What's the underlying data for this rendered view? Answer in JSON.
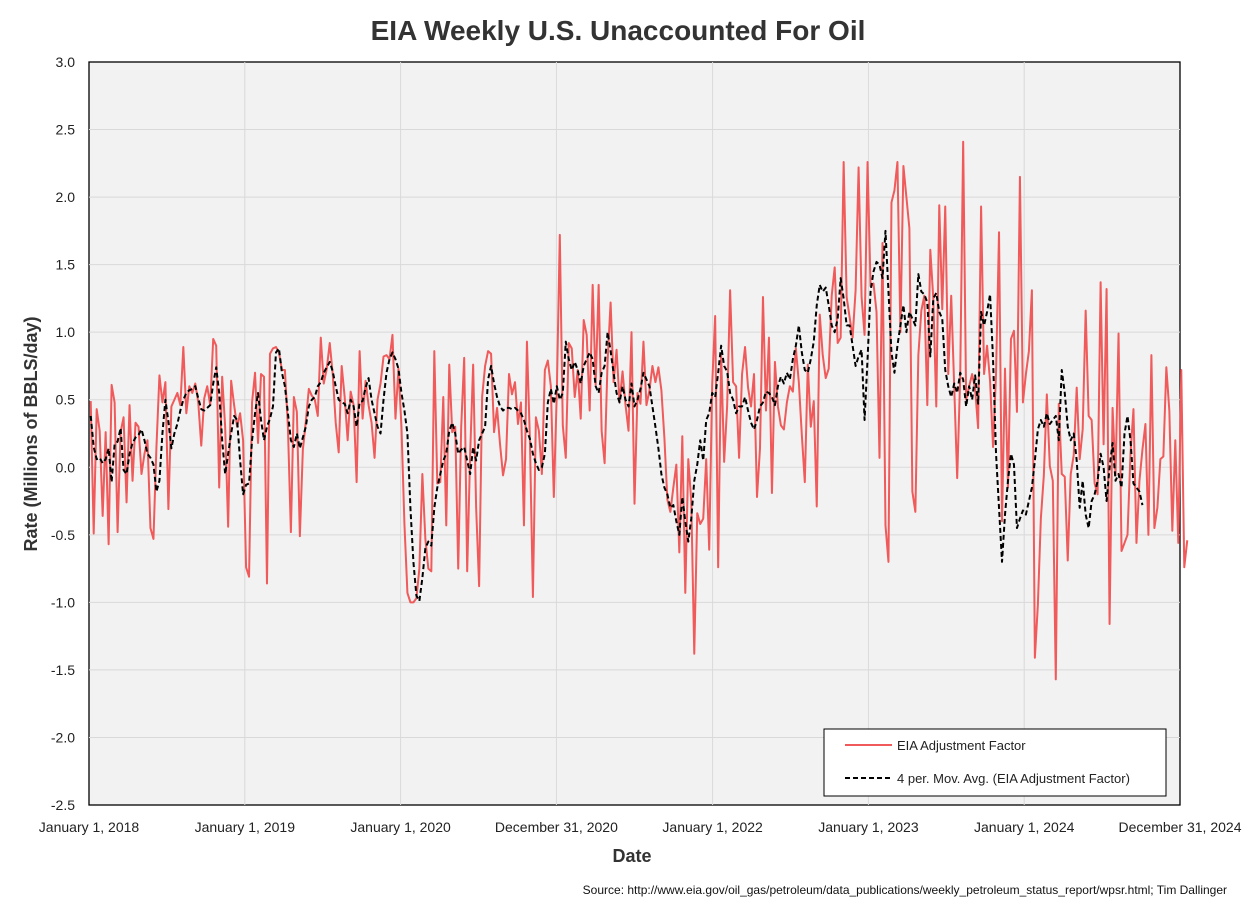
{
  "chart_data": {
    "type": "line",
    "title": "EIA Weekly U.S. Unaccounted For Oil",
    "xlabel": "Date",
    "ylabel": "Rate (Millions of BBLS/day)",
    "source": "Source: http://www.eia.gov/oil_gas/petroleum/data_publications/weekly_petroleum_status_report/wpsr.html; Tim Dallinger",
    "xlim": [
      "2018-01-01",
      "2024-12-31"
    ],
    "ylim": [
      -2.5,
      3.0
    ],
    "yticks": [
      3.0,
      2.5,
      2.0,
      1.5,
      1.0,
      0.5,
      0.0,
      -0.5,
      -1.0,
      -1.5,
      -2.0,
      -2.5
    ],
    "ytick_labels": [
      "3.0",
      "2.5",
      "2.0",
      "1.5",
      "1.0",
      "0.5",
      "0.0",
      "-0.5",
      "-1.0",
      "-1.5",
      "-2.0",
      "-2.5"
    ],
    "xticks": [
      "2018-01-01",
      "2019-01-01",
      "2020-01-01",
      "2020-12-31",
      "2022-01-01",
      "2023-01-01",
      "2024-01-01",
      "2024-12-31"
    ],
    "xtick_labels": [
      "January 1, 2018",
      "January 1, 2019",
      "January 1, 2020",
      "December 31, 2020",
      "January 1, 2022",
      "January 1, 2023",
      "January 1, 2024",
      "December 31, 2024"
    ],
    "grid": true,
    "legend_position": "bottom-right",
    "colors": {
      "series": "#f05a5a",
      "moving_avg": "#000000",
      "plot_bg": "#f2f2f2",
      "grid": "#d9d9d9"
    },
    "series": [
      {
        "name": "EIA Adjustment Factor",
        "x_start": "2018-01-05",
        "interval_days": 7,
        "values": [
          0.49,
          -0.49,
          0.43,
          0.27,
          -0.36,
          0.26,
          -0.57,
          0.61,
          0.48,
          -0.48,
          0.26,
          0.37,
          -0.26,
          0.46,
          -0.1,
          0.33,
          0.3,
          -0.05,
          0.1,
          0.2,
          -0.45,
          -0.53,
          0.15,
          0.68,
          0.48,
          0.63,
          -0.31,
          0.45,
          0.5,
          0.55,
          0.46,
          0.89,
          0.4,
          0.6,
          0.55,
          0.62,
          0.48,
          0.16,
          0.51,
          0.6,
          0.46,
          0.95,
          0.9,
          -0.15,
          0.67,
          0.3,
          -0.44,
          0.64,
          0.46,
          0.3,
          0.4,
          0.2,
          -0.74,
          -0.81,
          0.48,
          0.7,
          0.18,
          0.69,
          0.67,
          -0.86,
          0.84,
          0.88,
          0.89,
          0.85,
          0.72,
          0.72,
          0.3,
          -0.48,
          0.52,
          0.41,
          -0.51,
          0.13,
          0.34,
          0.58,
          0.53,
          0.5,
          0.38,
          0.96,
          0.62,
          0.73,
          0.92,
          0.69,
          0.33,
          0.11,
          0.75,
          0.52,
          0.2,
          0.56,
          0.46,
          -0.11,
          0.86,
          0.36,
          0.64,
          0.46,
          0.33,
          0.07,
          0.5,
          0.62,
          0.82,
          0.83,
          0.8,
          0.98,
          0.36,
          0.73,
          0.3,
          -0.42,
          -0.93,
          -1.0,
          -1.0,
          -0.97,
          -0.75,
          -0.05,
          -0.53,
          -0.75,
          -0.77,
          0.86,
          -0.12,
          -0.11,
          0.52,
          -0.43,
          0.76,
          0.26,
          0.3,
          -0.75,
          0.3,
          0.81,
          -0.77,
          0.1,
          0.76,
          -0.3,
          -0.88,
          0.52,
          0.75,
          0.86,
          0.84,
          0.26,
          0.44,
          0.17,
          -0.06,
          0.06,
          0.69,
          0.54,
          0.63,
          0.32,
          0.48,
          -0.43,
          0.93,
          0.2,
          -0.96,
          0.37,
          0.27,
          -0.05,
          0.72,
          0.79,
          0.6,
          -0.22,
          0.56,
          1.72,
          0.31,
          0.07,
          0.92,
          0.88,
          0.52,
          0.72,
          0.36,
          1.09,
          0.98,
          0.42,
          1.35,
          0.61,
          1.35,
          0.27,
          0.03,
          0.79,
          1.22,
          0.63,
          0.87,
          0.48,
          0.71,
          0.46,
          0.27,
          1.0,
          -0.27,
          0.55,
          0.47,
          0.93,
          0.46,
          0.57,
          0.75,
          0.63,
          0.74,
          0.57,
          0.22,
          -0.24,
          -0.33,
          -0.15,
          0.02,
          -0.63,
          0.23,
          -0.93,
          0.06,
          -0.25,
          -1.38,
          -0.34,
          -0.42,
          -0.38,
          0.06,
          -0.61,
          0.61,
          1.12,
          -0.74,
          0.83,
          0.04,
          0.45,
          1.31,
          0.63,
          0.6,
          0.07,
          0.69,
          0.89,
          0.59,
          0.45,
          0.69,
          -0.22,
          0.14,
          1.26,
          0.42,
          0.96,
          -0.19,
          0.78,
          0.45,
          0.31,
          0.28,
          0.48,
          0.6,
          0.56,
          0.88,
          0.63,
          0.24,
          -0.11,
          0.76,
          0.3,
          0.49,
          -0.29,
          1.13,
          0.83,
          0.66,
          0.73,
          1.27,
          1.48,
          0.92,
          0.96,
          2.26,
          1.26,
          1.11,
          0.96,
          1.31,
          2.22,
          1.26,
          0.98,
          2.26,
          1.34,
          1.36,
          1.15,
          0.07,
          1.66,
          -0.43,
          -0.7,
          1.96,
          2.05,
          2.26,
          1.0,
          2.23,
          2.0,
          1.77,
          -0.18,
          -0.33,
          0.83,
          1.16,
          1.27,
          0.46,
          1.61,
          1.25,
          0.45,
          1.94,
          1.17,
          1.93,
          0.69,
          1.27,
          0.6,
          -0.08,
          0.66,
          2.41,
          0.5,
          0.6,
          0.69,
          0.58,
          0.29,
          1.93,
          0.69,
          0.9,
          0.64,
          0.15,
          0.69,
          1.74,
          -0.4,
          0.73,
          -0.15,
          0.95,
          1.01,
          0.41,
          2.15,
          0.48,
          0.69,
          0.86,
          1.31,
          -1.41,
          -1.02,
          -0.38,
          -0.06,
          0.54,
          0.01,
          -0.1,
          -1.57,
          0.47,
          -0.05,
          -0.07,
          -0.69,
          -0.05,
          0.09,
          0.59,
          0.06,
          0.28,
          1.16,
          0.38,
          0.35,
          -0.12,
          -0.2,
          1.37,
          0.17,
          1.32,
          -1.16,
          0.44,
          -0.06,
          0.99,
          -0.62,
          -0.56,
          -0.5,
          0.1,
          0.43,
          -0.56,
          -0.1,
          0.13,
          0.32,
          -0.5,
          0.83,
          -0.45,
          -0.3,
          0.06,
          0.08,
          0.74,
          0.42,
          -0.47,
          0.2,
          -0.56,
          0.72,
          -0.74,
          -0.54
        ]
      },
      {
        "name": "4 per. Mov. Avg. (EIA Adjustment Factor)",
        "x_start": "2018-01-05",
        "interval_days": 7,
        "values": [
          0.38,
          0.15,
          0.06,
          0.07,
          0.03,
          0.06,
          0.14,
          -0.11,
          0.17,
          0.19,
          0.29,
          -0.02,
          -0.05,
          0.1,
          0.18,
          0.22,
          0.24,
          0.28,
          0.2,
          0.1,
          0.07,
          0.02,
          -0.18,
          -0.1,
          0.25,
          0.5,
          0.34,
          0.14,
          0.25,
          0.32,
          0.42,
          0.5,
          0.55,
          0.57,
          0.58,
          0.6,
          0.51,
          0.43,
          0.42,
          0.44,
          0.46,
          0.62,
          0.74,
          0.55,
          0.2,
          -0.05,
          0.1,
          0.25,
          0.38,
          0.35,
          0.05,
          -0.2,
          -0.13,
          -0.12,
          0.2,
          0.4,
          0.55,
          0.35,
          0.2,
          0.3,
          0.36,
          0.45,
          0.85,
          0.88,
          0.7,
          0.6,
          0.4,
          0.2,
          0.15,
          0.25,
          0.14,
          0.22,
          0.3,
          0.45,
          0.5,
          0.52,
          0.6,
          0.63,
          0.7,
          0.74,
          0.78,
          0.71,
          0.6,
          0.5,
          0.48,
          0.47,
          0.4,
          0.5,
          0.45,
          0.3,
          0.48,
          0.49,
          0.59,
          0.66,
          0.5,
          0.4,
          0.3,
          0.25,
          0.5,
          0.7,
          0.8,
          0.85,
          0.8,
          0.73,
          0.55,
          0.42,
          0.25,
          -0.3,
          -0.7,
          -0.95,
          -0.99,
          -0.82,
          -0.6,
          -0.55,
          -0.58,
          -0.3,
          -0.15,
          -0.05,
          0.05,
          0.1,
          0.27,
          0.33,
          0.25,
          0.1,
          0.13,
          0.15,
          0.05,
          -0.05,
          0.15,
          0.05,
          0.2,
          0.25,
          0.3,
          0.65,
          0.75,
          0.62,
          0.52,
          0.45,
          0.42,
          0.44,
          0.44,
          0.43,
          0.44,
          0.42,
          0.4,
          0.35,
          0.27,
          0.21,
          0.1,
          0.03,
          -0.02,
          0.0,
          0.1,
          0.48,
          0.58,
          0.47,
          0.6,
          0.5,
          0.55,
          0.93,
          0.8,
          0.72,
          0.78,
          0.72,
          0.62,
          0.75,
          0.8,
          0.85,
          0.8,
          0.6,
          0.55,
          0.7,
          0.75,
          1.0,
          0.86,
          0.7,
          0.55,
          0.48,
          0.6,
          0.5,
          0.45,
          0.62,
          0.45,
          0.5,
          0.58,
          0.7,
          0.65,
          0.6,
          0.45,
          0.3,
          0.14,
          -0.05,
          -0.15,
          -0.2,
          -0.3,
          -0.28,
          -0.4,
          -0.5,
          -0.22,
          -0.4,
          -0.55,
          -0.38,
          -0.1,
          0.02,
          0.2,
          0.05,
          0.35,
          0.4,
          0.55,
          0.52,
          0.7,
          0.9,
          0.75,
          0.71,
          0.55,
          0.5,
          0.4,
          0.45,
          0.45,
          0.52,
          0.42,
          0.33,
          0.28,
          0.35,
          0.45,
          0.48,
          0.56,
          0.55,
          0.52,
          0.46,
          0.6,
          0.67,
          0.62,
          0.7,
          0.65,
          0.8,
          0.9,
          1.05,
          0.85,
          0.72,
          0.7,
          0.8,
          0.93,
          1.2,
          1.35,
          1.3,
          1.33,
          1.2,
          1.05,
          1.0,
          1.1,
          1.4,
          1.25,
          1.05,
          1.05,
          0.9,
          0.75,
          0.82,
          0.87,
          0.35,
          0.8,
          1.3,
          1.45,
          1.52,
          1.5,
          1.4,
          1.75,
          1.3,
          0.85,
          0.7,
          0.9,
          1.05,
          1.2,
          1.0,
          1.15,
          1.1,
          1.05,
          1.43,
          1.3,
          1.28,
          1.22,
          0.82,
          1.25,
          1.29,
          1.15,
          1.1,
          0.72,
          0.6,
          0.52,
          0.62,
          0.55,
          0.7,
          0.65,
          0.45,
          0.6,
          0.5,
          0.68,
          0.47,
          1.15,
          1.05,
          1.15,
          1.28,
          0.8,
          0.1,
          -0.3,
          -0.7,
          -0.35,
          -0.1,
          0.1,
          0.02,
          -0.45,
          -0.38,
          -0.32,
          -0.35,
          -0.25,
          -0.15,
          0.05,
          0.28,
          0.35,
          0.3,
          0.4,
          0.32,
          0.35,
          0.38,
          0.2,
          0.72,
          0.55,
          0.3,
          0.2,
          0.25,
          0.05,
          -0.3,
          -0.1,
          -0.35,
          -0.45,
          -0.25,
          -0.2,
          -0.1,
          0.1,
          0.0,
          -0.25,
          0.0,
          0.18,
          -0.1,
          -0.05,
          -0.15,
          0.25,
          0.38,
          0.2,
          -0.12,
          -0.15,
          -0.18,
          -0.28
        ]
      }
    ]
  }
}
